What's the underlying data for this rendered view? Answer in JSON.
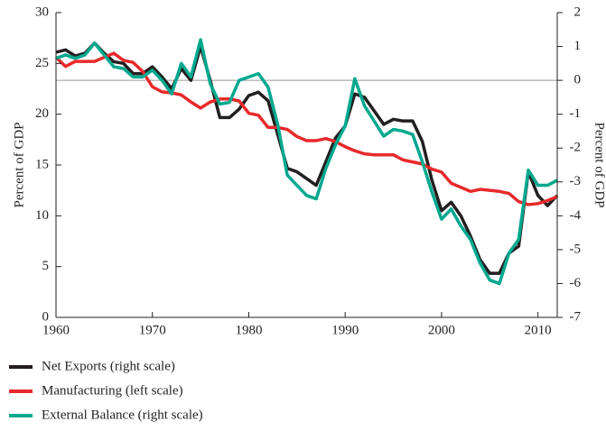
{
  "chart_data": {
    "type": "line",
    "ylabel": "Percent of GDP",
    "y2label": "Percent of GDP",
    "x": [
      1960,
      1961,
      1962,
      1963,
      1964,
      1965,
      1966,
      1967,
      1968,
      1969,
      1970,
      1971,
      1972,
      1973,
      1974,
      1975,
      1976,
      1977,
      1978,
      1979,
      1980,
      1981,
      1982,
      1983,
      1984,
      1985,
      1986,
      1987,
      1988,
      1989,
      1990,
      1991,
      1992,
      1993,
      1994,
      1995,
      1996,
      1997,
      1998,
      1999,
      2000,
      2001,
      2002,
      2003,
      2004,
      2005,
      2006,
      2007,
      2008,
      2009,
      2010,
      2011,
      2012
    ],
    "xlim": [
      1960,
      2012
    ],
    "xticks": [
      1960,
      1970,
      1980,
      1990,
      2000,
      2010
    ],
    "ylim": [
      0,
      30
    ],
    "yticks": [
      0,
      5,
      10,
      15,
      20,
      25,
      30
    ],
    "y2lim": [
      -7,
      2
    ],
    "y2ticks": [
      -7,
      -6,
      -5,
      -4,
      -3,
      -2,
      -1,
      0,
      1,
      2
    ],
    "series": [
      {
        "name": "Net Exports (right scale)",
        "color": "#231f20",
        "axis": "y2",
        "values": [
          0.83,
          0.9,
          0.72,
          0.8,
          1.1,
          0.8,
          0.55,
          0.5,
          0.2,
          0.2,
          0.4,
          0.1,
          -0.25,
          0.35,
          0,
          1.0,
          0,
          -1.1,
          -1.1,
          -0.85,
          -0.45,
          -0.35,
          -0.6,
          -1.6,
          -2.6,
          -2.7,
          -2.9,
          -3.1,
          -2.4,
          -1.7,
          -1.35,
          -0.4,
          -0.5,
          -0.9,
          -1.3,
          -1.15,
          -1.2,
          -1.2,
          -1.8,
          -2.95,
          -3.85,
          -3.6,
          -4.0,
          -4.6,
          -5.3,
          -5.7,
          -5.7,
          -5.1,
          -4.9,
          -2.7,
          -3.4,
          -3.7,
          -3.4
        ]
      },
      {
        "name": "Manufacturing (left scale)",
        "color": "#e8292b",
        "values": [
          25.6,
          24.7,
          25.2,
          25.2,
          25.2,
          25.6,
          26.0,
          25.3,
          25.1,
          24.2,
          22.7,
          22.2,
          22.1,
          21.9,
          21.2,
          20.6,
          21.2,
          21.5,
          21.5,
          21.3,
          20.1,
          19.9,
          18.7,
          18.7,
          18.5,
          17.8,
          17.4,
          17.4,
          17.6,
          17.3,
          16.8,
          16.4,
          16.1,
          16.0,
          16.0,
          16.0,
          15.5,
          15.3,
          15.1,
          14.6,
          14.3,
          13.2,
          12.8,
          12.4,
          12.6,
          12.5,
          12.4,
          12.2,
          11.4,
          11.1,
          11.2,
          11.5,
          11.9
        ]
      },
      {
        "name": "External Balance (right scale)",
        "color": "#00a88e",
        "axis": "y2",
        "values": [
          0.65,
          0.75,
          0.65,
          0.75,
          1.1,
          0.75,
          0.4,
          0.35,
          0.1,
          0.1,
          0.3,
          0.0,
          -0.4,
          0.5,
          0.1,
          1.2,
          -0.1,
          -0.7,
          -0.65,
          0.0,
          0.1,
          0.2,
          -0.2,
          -1.3,
          -2.8,
          -3.1,
          -3.4,
          -3.5,
          -2.6,
          -1.9,
          -1.35,
          0.05,
          -0.75,
          -1.2,
          -1.65,
          -1.45,
          -1.5,
          -1.6,
          -2.4,
          -3.3,
          -4.1,
          -3.8,
          -4.3,
          -4.7,
          -5.4,
          -5.9,
          -6.0,
          -5.1,
          -4.7,
          -2.65,
          -3.1,
          -3.1,
          -2.95
        ]
      }
    ]
  }
}
